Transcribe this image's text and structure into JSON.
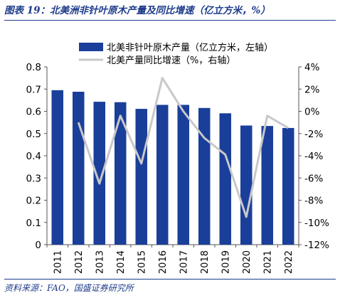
{
  "figure_title": "图表 19：北美洲非针叶原木产量及同比增速（亿立方米，%）",
  "source": "资料来源：FAO，国盛证券研究所",
  "colors": {
    "bar": "#1a3f9a",
    "line": "#c8c8c8",
    "accent": "#1e3c8c"
  },
  "chart_data": {
    "type": "bar",
    "categories": [
      "2011",
      "2012",
      "2013",
      "2014",
      "2015",
      "2016",
      "2017",
      "2018",
      "2019",
      "2020",
      "2021",
      "2022"
    ],
    "series": [
      {
        "name": "北美非针叶原木产量（亿立方米，左轴）",
        "type": "bar",
        "axis": "left",
        "values": [
          0.695,
          0.688,
          0.643,
          0.641,
          0.611,
          0.629,
          0.629,
          0.615,
          0.591,
          0.536,
          0.534,
          0.525
        ]
      },
      {
        "name": "北美产量同比增速（%，右轴）",
        "type": "line",
        "axis": "right",
        "values": [
          null,
          -1.0,
          -6.5,
          -0.4,
          -4.7,
          3.0,
          0.0,
          -2.4,
          -3.9,
          -9.5,
          -0.4,
          -1.5
        ]
      }
    ],
    "y_left": {
      "ylim": [
        0,
        0.8
      ],
      "ticks": [
        0,
        0.1,
        0.2,
        0.3,
        0.4,
        0.5,
        0.6,
        0.7,
        0.8
      ],
      "tick_labels": [
        "0",
        "0.1",
        "0.2",
        "0.3",
        "0.4",
        "0.5",
        "0.6",
        "0.7",
        "0.8"
      ]
    },
    "y_right": {
      "ylim": [
        -12,
        4
      ],
      "ticks": [
        -12,
        -10,
        -8,
        -6,
        -4,
        -2,
        0,
        2,
        4
      ],
      "tick_labels": [
        "-12%",
        "-10%",
        "-8%",
        "-6%",
        "-4%",
        "-2%",
        "0%",
        "2%",
        "4%"
      ]
    },
    "legend_placement": "top-center",
    "grid": false
  }
}
